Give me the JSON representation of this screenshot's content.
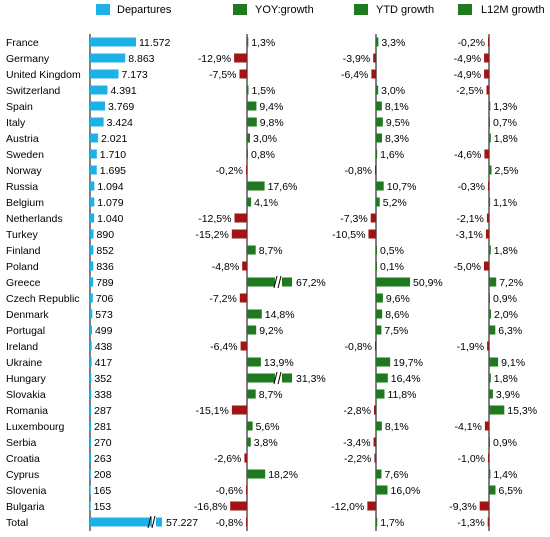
{
  "colors": {
    "departures": "#1EB1E8",
    "positive": "#1E7A1E",
    "negative": "#A01414",
    "axis": "#000000"
  },
  "legend": {
    "departures": "Departures",
    "yoy": "YOY:growth",
    "ytd": "YTD growth",
    "l12m": "L12M growth"
  },
  "chart_data": {
    "type": "bar",
    "legend_placement": "top",
    "grid": false,
    "categories": [
      "France",
      "Germany",
      "United Kingdom",
      "Switzerland",
      "Spain",
      "Italy",
      "Austria",
      "Sweden",
      "Norway",
      "Russia",
      "Belgium",
      "Netherlands",
      "Turkey",
      "Finland",
      "Poland",
      "Greece",
      "Czech Republic",
      "Denmark",
      "Portugal",
      "Ireland",
      "Ukraine",
      "Hungary",
      "Slovakia",
      "Romania",
      "Luxembourg",
      "Serbia",
      "Croatia",
      "Cyprus",
      "Slovenia",
      "Bulgaria",
      "Total"
    ],
    "series": [
      {
        "name": "Departures",
        "values": [
          11572,
          8863,
          7173,
          4391,
          3769,
          3424,
          2021,
          1710,
          1695,
          1094,
          1079,
          1040,
          890,
          852,
          836,
          789,
          706,
          573,
          499,
          438,
          417,
          352,
          338,
          287,
          281,
          270,
          263,
          208,
          165,
          153,
          57227
        ],
        "labels": [
          "11.572",
          "8.863",
          "7.173",
          "4.391",
          "3.769",
          "3.424",
          "2.021",
          "1.710",
          "1.695",
          "1.094",
          "1.079",
          "1.040",
          "890",
          "852",
          "836",
          "789",
          "706",
          "573",
          "499",
          "438",
          "417",
          "352",
          "338",
          "287",
          "281",
          "270",
          "263",
          "208",
          "165",
          "153",
          "57.227"
        ]
      },
      {
        "name": "YOY:growth",
        "values": [
          1.3,
          -12.9,
          -7.5,
          1.5,
          9.4,
          9.8,
          3.0,
          0.8,
          -0.2,
          17.6,
          4.1,
          -12.5,
          -15.2,
          8.7,
          -4.8,
          67.2,
          -7.2,
          14.8,
          9.2,
          -6.4,
          13.9,
          31.3,
          8.7,
          -15.1,
          5.6,
          3.8,
          -2.6,
          18.2,
          -0.6,
          -16.8,
          -0.8
        ],
        "labels": [
          "1,3%",
          "-12,9%",
          "-7,5%",
          "1,5%",
          "9,4%",
          "9,8%",
          "3,0%",
          "0,8%",
          "-0,2%",
          "17,6%",
          "4,1%",
          "-12,5%",
          "-15,2%",
          "8,7%",
          "-4,8%",
          "67,2%",
          "-7,2%",
          "14,8%",
          "9,2%",
          "-6,4%",
          "13,9%",
          "31,3%",
          "8,7%",
          "-15,1%",
          "5,6%",
          "3,8%",
          "-2,6%",
          "18,2%",
          "-0,6%",
          "-16,8%",
          "-0,8%"
        ]
      },
      {
        "name": "YTD growth",
        "values": [
          3.3,
          -3.9,
          -6.4,
          3.0,
          8.1,
          9.5,
          8.3,
          1.6,
          -0.8,
          10.7,
          5.2,
          -7.3,
          -10.5,
          0.5,
          0.1,
          50.9,
          9.6,
          8.6,
          7.5,
          -0.8,
          19.7,
          16.4,
          11.8,
          -2.8,
          8.1,
          -3.4,
          -2.2,
          7.6,
          16.0,
          -12.0,
          1.7
        ],
        "labels": [
          "3,3%",
          "-3,9%",
          "-6,4%",
          "3,0%",
          "8,1%",
          "9,5%",
          "8,3%",
          "1,6%",
          "-0,8%",
          "10,7%",
          "5,2%",
          "-7,3%",
          "-10,5%",
          "0,5%",
          "0,1%",
          "50,9%",
          "9,6%",
          "8,6%",
          "7,5%",
          "-0,8%",
          "19,7%",
          "16,4%",
          "11,8%",
          "-2,8%",
          "8,1%",
          "-3,4%",
          "-2,2%",
          "7,6%",
          "16,0%",
          "-12,0%",
          "1,7%"
        ]
      },
      {
        "name": "L12M growth",
        "values": [
          -0.2,
          -4.9,
          -4.9,
          -2.5,
          1.3,
          0.7,
          1.8,
          -4.6,
          2.5,
          -0.3,
          1.1,
          -2.1,
          -3.1,
          1.8,
          -5.0,
          7.2,
          0.9,
          2.0,
          6.3,
          -1.9,
          9.1,
          1.8,
          3.9,
          15.3,
          -4.1,
          0.9,
          -1.0,
          1.4,
          6.5,
          -9.3,
          -1.3
        ],
        "labels": [
          "-0,2%",
          "-4,9%",
          "-4,9%",
          "-2,5%",
          "1,3%",
          "0,7%",
          "1,8%",
          "-4,6%",
          "2,5%",
          "-0,3%",
          "1,1%",
          "-2,1%",
          "-3,1%",
          "1,8%",
          "-5,0%",
          "7,2%",
          "0,9%",
          "2,0%",
          "6,3%",
          "-1,9%",
          "9,1%",
          "1,8%",
          "3,9%",
          "15,3%",
          "-4,1%",
          "0,9%",
          "-1,0%",
          "1,4%",
          "6,5%",
          "-9,3%",
          "-1,3%"
        ]
      }
    ]
  }
}
